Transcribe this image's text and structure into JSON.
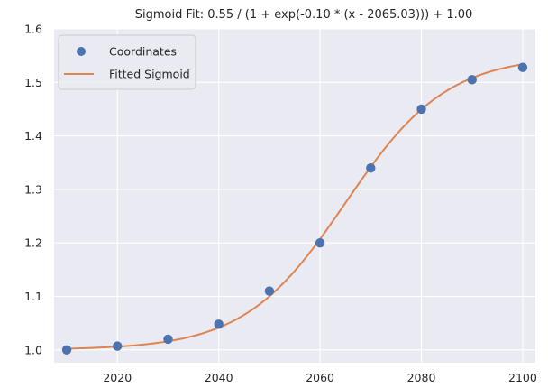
{
  "chart_data": {
    "type": "scatter",
    "title": "Sigmoid Fit: 0.55 / (1 + exp(-0.10 * (x - 2065.03))) + 1.00",
    "xlabel": "",
    "ylabel": "",
    "xlim": [
      2007.5,
      2102.5
    ],
    "ylim": [
      0.976,
      1.6
    ],
    "xticks": [
      2020,
      2040,
      2060,
      2080,
      2100
    ],
    "yticks": [
      1.0,
      1.1,
      1.2,
      1.3,
      1.4,
      1.5,
      1.6
    ],
    "grid": true,
    "legend": {
      "placement": "top-left",
      "entries": [
        "Coordinates",
        "Fitted Sigmoid"
      ]
    },
    "series": [
      {
        "name": "Coordinates",
        "kind": "scatter",
        "color": "#4c72b0",
        "x": [
          2010,
          2020,
          2030,
          2040,
          2050,
          2060,
          2070,
          2080,
          2090,
          2100
        ],
        "y": [
          1.0,
          1.007,
          1.02,
          1.048,
          1.11,
          1.2,
          1.34,
          1.45,
          1.505,
          1.528
        ]
      },
      {
        "name": "Fitted Sigmoid",
        "kind": "line",
        "color": "#dd8452",
        "params": {
          "L": 0.55,
          "k": 0.1,
          "x0": 2065.03,
          "b": 1.0
        },
        "x_range": [
          2010,
          2100
        ]
      }
    ]
  },
  "style": {
    "plot_bg": "#eaeaf2",
    "grid_color": "#ffffff",
    "text_color": "#262626"
  }
}
